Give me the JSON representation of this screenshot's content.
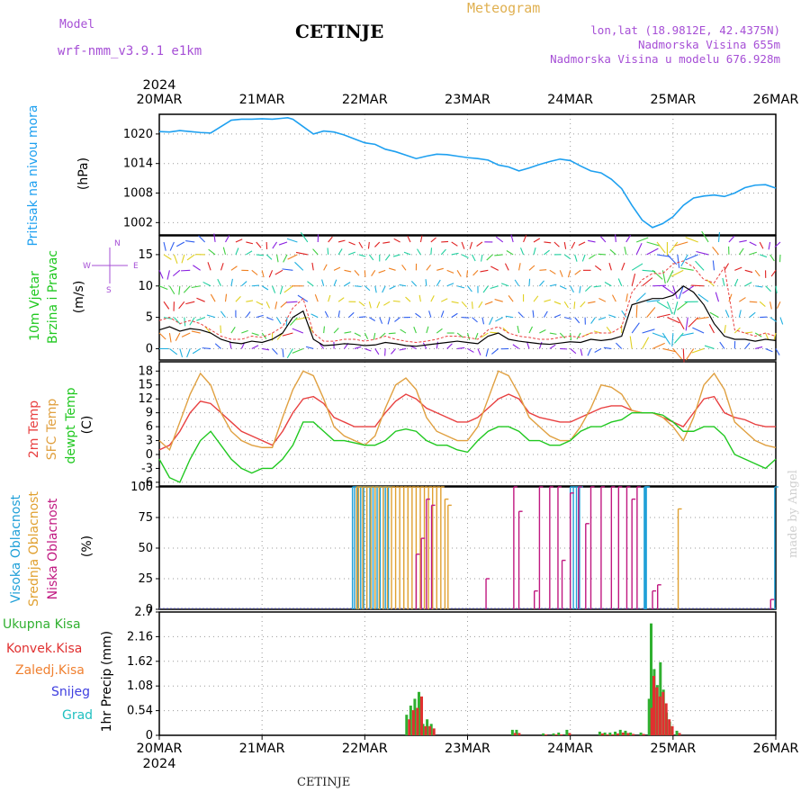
{
  "header": {
    "model_label": "Model",
    "model_name": "wrf-nmm_v3.9.1 e1km",
    "station": "CETINJE",
    "product": "Meteogram",
    "coords": "lon,lat (18.9812E, 42.4375N)",
    "altitude": "Nadmorska Visina 655m",
    "altitude_model": "Nadmorska Visina u modelu 676.928m",
    "year": "2024"
  },
  "footer": {
    "station": "CETINJE"
  },
  "watermark": "made by Angel",
  "time_axis": [
    "20MAR",
    "21MAR",
    "22MAR",
    "23MAR",
    "24MAR",
    "25MAR",
    "26MAR"
  ],
  "colors": {
    "pressure": "#1ea0f0",
    "grid": "#9a9a9a",
    "temp2m": "#e84040",
    "sfc_temp": "#e0a040",
    "dewpt": "#20c820",
    "cloud_high": "#20a0d8",
    "cloud_mid": "#e0a030",
    "cloud_low": "#c01880",
    "precip_total": "#30b030",
    "precip_conv": "#e03030",
    "precip_frozen": "#f08030",
    "snow": "#4040e0",
    "hail": "#20c0c0",
    "speed": "#000000",
    "gust": "#e84040"
  },
  "chart_data": [
    {
      "type": "line",
      "panel": "pressure",
      "ylabel_lines": [
        "Pritisak na nivou mora"
      ],
      "unit": "(hPa)",
      "yticks": [
        1002,
        1008,
        1014,
        1020
      ],
      "ylim": [
        999.5,
        1024
      ],
      "x_days": [
        0,
        0.1,
        0.2,
        0.3,
        0.4,
        0.5,
        0.6,
        0.7,
        0.8,
        0.9,
        1.0,
        1.1,
        1.2,
        1.25,
        1.3,
        1.4,
        1.5,
        1.6,
        1.7,
        1.8,
        1.9,
        2.0,
        2.1,
        2.2,
        2.3,
        2.4,
        2.5,
        2.6,
        2.7,
        2.8,
        2.9,
        3.0,
        3.1,
        3.2,
        3.3,
        3.4,
        3.5,
        3.6,
        3.7,
        3.8,
        3.9,
        4.0,
        4.1,
        4.2,
        4.3,
        4.4,
        4.5,
        4.6,
        4.7,
        4.8,
        4.9,
        5.0,
        5.1,
        5.2,
        5.3,
        5.4,
        5.5,
        5.6,
        5.7,
        5.8,
        5.9,
        6.0
      ],
      "series": [
        {
          "key": "pressure",
          "values": [
            1020.5,
            1020.4,
            1020.7,
            1020.5,
            1020.3,
            1020.2,
            1021.5,
            1022.8,
            1023.0,
            1023.0,
            1023.1,
            1023.0,
            1023.2,
            1023.3,
            1023.0,
            1021.5,
            1020.0,
            1020.6,
            1020.4,
            1019.8,
            1019.0,
            1018.2,
            1017.9,
            1016.9,
            1016.4,
            1015.7,
            1015.0,
            1015.5,
            1015.9,
            1015.8,
            1015.5,
            1015.2,
            1015.0,
            1014.7,
            1013.7,
            1013.3,
            1012.5,
            1013.1,
            1013.8,
            1014.4,
            1014.9,
            1014.6,
            1013.5,
            1012.5,
            1012.1,
            1010.8,
            1008.9,
            1005.5,
            1002.5,
            1001.0,
            1001.8,
            1003.2,
            1005.5,
            1007.0,
            1007.4,
            1007.6,
            1007.3,
            1008.0,
            1009.1,
            1009.6,
            1009.7,
            1009.0
          ]
        }
      ]
    },
    {
      "type": "wind",
      "panel": "wind",
      "ylabel_lines": [
        "10m Vjetar",
        "Brzina i Pravac"
      ],
      "unit": "(m/s)",
      "compass": "N, W, E, S",
      "yticks": [
        0,
        5,
        10,
        15
      ],
      "ylim": [
        -1.8,
        18
      ],
      "x_days": [
        0,
        0.1,
        0.2,
        0.3,
        0.4,
        0.5,
        0.6,
        0.7,
        0.8,
        0.9,
        1.0,
        1.1,
        1.2,
        1.3,
        1.4,
        1.5,
        1.6,
        1.7,
        1.8,
        1.9,
        2.0,
        2.1,
        2.2,
        2.3,
        2.4,
        2.5,
        2.6,
        2.7,
        2.8,
        2.9,
        3.0,
        3.1,
        3.2,
        3.3,
        3.4,
        3.5,
        3.6,
        3.7,
        3.8,
        3.9,
        4.0,
        4.1,
        4.2,
        4.3,
        4.4,
        4.5,
        4.6,
        4.7,
        4.8,
        4.9,
        5.0,
        5.1,
        5.2,
        5.3,
        5.4,
        5.5,
        5.6,
        5.7,
        5.8,
        5.9,
        6.0
      ],
      "series": [
        {
          "key": "speed",
          "name": "",
          "values": [
            3,
            3.5,
            2.8,
            3.2,
            3,
            2.5,
            1.5,
            1,
            0.8,
            1.2,
            1,
            1.5,
            2.5,
            5,
            6,
            1.5,
            0.5,
            0.6,
            0.8,
            0.7,
            0.5,
            0.6,
            1,
            0.8,
            0.5,
            0.4,
            0.6,
            0.8,
            1,
            1.2,
            1,
            0.8,
            2,
            2.5,
            1.5,
            1.2,
            1,
            0.8,
            0.7,
            0.9,
            1.1,
            1,
            1.5,
            1.3,
            1.5,
            2,
            7,
            7.5,
            8,
            8,
            8.5,
            10,
            9,
            7,
            4,
            2,
            1.5,
            1.5,
            1.2,
            1.5,
            1.3
          ]
        },
        {
          "key": "gust",
          "name": "",
          "values": [
            4.5,
            5,
            4,
            4.5,
            4,
            3,
            2,
            1.5,
            1.5,
            2,
            1.8,
            2.5,
            3.5,
            6.5,
            8,
            2.5,
            1.2,
            1.2,
            1.5,
            1.5,
            1.2,
            1.5,
            2,
            1.5,
            1.2,
            1,
            1.2,
            1.5,
            2,
            2,
            1.8,
            1.5,
            3,
            3.5,
            2.5,
            2,
            1.8,
            1.5,
            1.5,
            1.8,
            2,
            1.8,
            2.5,
            2.5,
            2.5,
            3.5,
            9,
            11,
            12,
            12,
            13.5,
            14,
            13,
            11,
            10.5,
            13,
            3,
            2.5,
            2,
            2.5,
            2
          ]
        }
      ]
    },
    {
      "type": "line",
      "panel": "temperature",
      "ylabel_lines": [
        "2m Temp",
        "SFC Temp",
        "dewpt Temp"
      ],
      "unit": "(C)",
      "yticks": [
        -6,
        -3,
        0,
        3,
        6,
        9,
        12,
        15,
        18
      ],
      "ylim": [
        -6.8,
        20
      ],
      "x_days": [
        0,
        0.1,
        0.2,
        0.3,
        0.4,
        0.5,
        0.6,
        0.7,
        0.8,
        0.9,
        1.0,
        1.1,
        1.2,
        1.3,
        1.4,
        1.5,
        1.6,
        1.7,
        1.8,
        1.9,
        2.0,
        2.1,
        2.2,
        2.3,
        2.4,
        2.5,
        2.6,
        2.7,
        2.8,
        2.9,
        3.0,
        3.1,
        3.2,
        3.3,
        3.4,
        3.5,
        3.6,
        3.7,
        3.8,
        3.9,
        4.0,
        4.1,
        4.2,
        4.3,
        4.4,
        4.5,
        4.6,
        4.7,
        4.8,
        4.9,
        5.0,
        5.1,
        5.2,
        5.3,
        5.4,
        5.5,
        5.6,
        5.7,
        5.8,
        5.9,
        6.0
      ],
      "series": [
        {
          "key": "temp2m",
          "name": "2m Temp",
          "values": [
            1,
            2,
            5,
            9,
            11.5,
            11,
            9,
            7,
            5,
            4,
            3,
            2,
            5,
            9,
            12,
            12.5,
            11,
            8,
            7,
            6,
            6,
            6,
            9,
            11.5,
            13,
            12,
            10,
            9,
            8,
            7,
            7,
            8,
            10,
            12,
            13,
            12,
            9,
            8,
            7.5,
            7,
            7,
            8,
            9,
            10,
            10.5,
            10.5,
            9.5,
            9,
            9,
            8,
            7,
            6,
            9,
            12,
            12.5,
            9,
            8,
            7.5,
            6.5,
            6,
            6
          ]
        },
        {
          "key": "sfc_temp",
          "name": "SFC Temp",
          "values": [
            3,
            1,
            7,
            13,
            17.5,
            15,
            9,
            5,
            3,
            2,
            1.5,
            1.5,
            8,
            14,
            18,
            17,
            12,
            6,
            4,
            3,
            2,
            4,
            10,
            15,
            16.5,
            14,
            8,
            5,
            4,
            3,
            3,
            6,
            12,
            18,
            17,
            13,
            8,
            6,
            4,
            3,
            3,
            6,
            10,
            15,
            14.5,
            13,
            9.5,
            9,
            9,
            8,
            6,
            3,
            8,
            15,
            17.5,
            14,
            7,
            5,
            3,
            2,
            1.5
          ]
        },
        {
          "key": "dewpt",
          "name": "dewpt Temp",
          "values": [
            -1,
            -5,
            -6,
            -1,
            3,
            5,
            2,
            -1,
            -3,
            -4,
            -3,
            -3,
            -1,
            2,
            7,
            7,
            5,
            3,
            3,
            2.5,
            2,
            2,
            3,
            5,
            5.5,
            5,
            3,
            2,
            2,
            1,
            0.5,
            3,
            5,
            6,
            6,
            5,
            3,
            3,
            2,
            2,
            3,
            5,
            6,
            6,
            7,
            7.5,
            9,
            9,
            9,
            8.5,
            7,
            5,
            5,
            6,
            6,
            4,
            0,
            -1,
            -2,
            -3,
            -1
          ]
        }
      ]
    },
    {
      "type": "bar",
      "panel": "clouds",
      "ylabel_lines": [
        "Visoka Oblacnost",
        "Srednja Oblacnost",
        "Niska Oblacnost"
      ],
      "unit": "(%)",
      "yticks": [
        0,
        25,
        50,
        75,
        100
      ],
      "ylim": [
        0,
        100
      ],
      "series": [
        {
          "key": "cloud_high",
          "name": "Visoka Oblacnost",
          "x_days": [
            1.88,
            1.9,
            1.93,
            1.96,
            1.99,
            2.02,
            2.05,
            2.08,
            2.1,
            2.12,
            2.15,
            2.18,
            2.2,
            2.23,
            4.0,
            4.03,
            4.06,
            4.09,
            4.72,
            4.73,
            4.74,
            5.99
          ],
          "values": [
            100,
            100,
            100,
            100,
            100,
            100,
            100,
            100,
            100,
            100,
            100,
            100,
            100,
            100,
            100,
            100,
            100,
            100,
            100,
            100,
            100,
            100
          ]
        },
        {
          "key": "cloud_mid",
          "name": "Srednja Oblacnost",
          "x_days": [
            1.92,
            1.94,
            1.98,
            2.02,
            2.06,
            2.1,
            2.14,
            2.18,
            2.22,
            2.26,
            2.3,
            2.34,
            2.38,
            2.42,
            2.46,
            2.5,
            2.54,
            2.58,
            2.62,
            2.66,
            2.7,
            2.74,
            2.78,
            2.81,
            5.05
          ],
          "values": [
            100,
            100,
            100,
            100,
            100,
            100,
            100,
            100,
            100,
            100,
            100,
            100,
            100,
            100,
            100,
            100,
            100,
            100,
            100,
            100,
            100,
            100,
            90,
            85,
            82
          ]
        },
        {
          "key": "cloud_low",
          "name": "Niska Oblacnost",
          "x_days": [
            2.5,
            2.55,
            2.6,
            2.65,
            3.18,
            3.45,
            3.5,
            3.65,
            3.7,
            3.8,
            3.88,
            3.92,
            4.0,
            4.08,
            4.15,
            4.2,
            4.3,
            4.4,
            4.47,
            4.55,
            4.6,
            4.65,
            4.8,
            4.85,
            5.95
          ],
          "values": [
            45,
            58,
            90,
            85,
            25,
            100,
            80,
            15,
            100,
            100,
            100,
            40,
            95,
            100,
            70,
            100,
            100,
            100,
            100,
            100,
            90,
            100,
            15,
            20,
            8
          ]
        }
      ]
    },
    {
      "type": "bar",
      "panel": "precip",
      "ylabel_lines": [
        "1hr Precip"
      ],
      "unit": "(mm)",
      "legend": [
        "Ukupna Kisa",
        "Konvek.Kisa",
        "Zaledj.Kisa",
        "Snijeg",
        "Grad"
      ],
      "yticks": [
        0,
        0.54,
        1.08,
        1.62,
        2.16,
        2.7
      ],
      "ylim": [
        0,
        2.7
      ],
      "x_days": [
        2.42,
        2.46,
        2.5,
        2.54,
        2.58,
        2.62,
        2.66,
        3.45,
        3.49,
        3.75,
        3.85,
        3.9,
        3.98,
        4.3,
        4.35,
        4.4,
        4.45,
        4.5,
        4.55,
        4.6,
        4.7,
        4.78,
        4.8,
        4.83,
        4.86,
        4.89,
        4.92,
        4.95,
        4.98,
        5.05
      ],
      "series": [
        {
          "key": "precip_total",
          "name": "Ukupna Kisa",
          "values": [
            0.45,
            0.65,
            0.8,
            0.95,
            0.25,
            0.35,
            0.25,
            0.12,
            0.12,
            0.04,
            0.04,
            0.06,
            0.12,
            0.08,
            0.06,
            0.06,
            0.08,
            0.12,
            0.1,
            0.06,
            0.06,
            0.8,
            2.45,
            1.45,
            1.1,
            1.6,
            1.0,
            0.5,
            0.3,
            0.1
          ]
        },
        {
          "key": "precip_conv",
          "name": "Konvek.Kisa",
          "values": [
            0.35,
            0.55,
            0.6,
            0.85,
            0.2,
            0.2,
            0.15,
            0.05,
            0.05,
            0.02,
            0.02,
            0.02,
            0.05,
            0.04,
            0.02,
            0.02,
            0.04,
            0.06,
            0.05,
            0.03,
            0.03,
            0.6,
            1.3,
            1.05,
            0.85,
            0.95,
            0.7,
            0.35,
            0.2,
            0.05
          ]
        }
      ]
    }
  ]
}
